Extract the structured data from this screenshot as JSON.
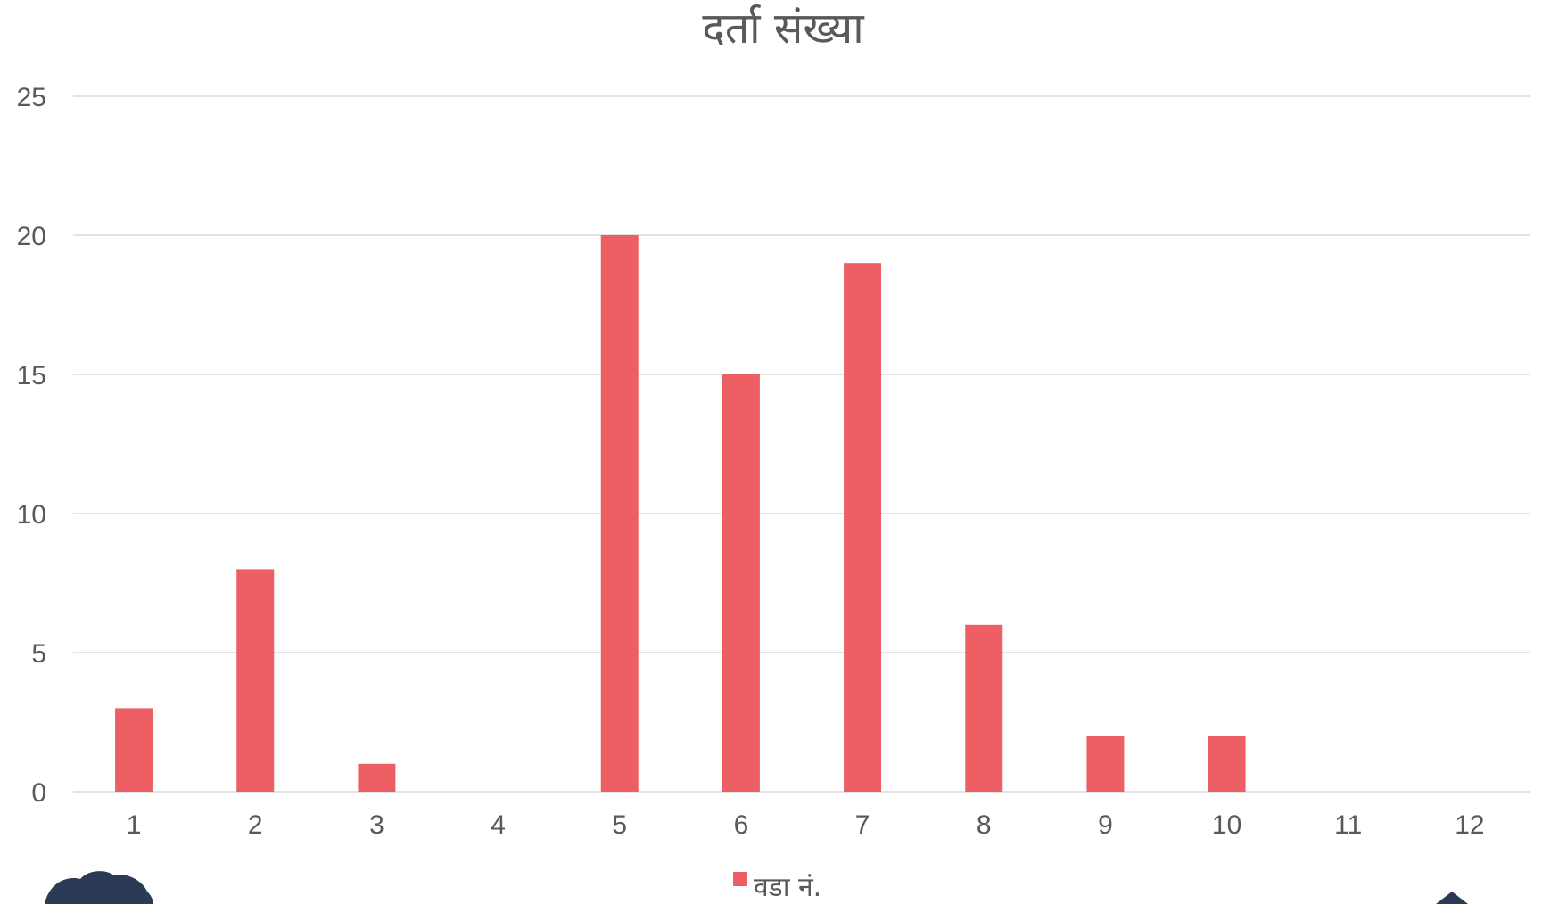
{
  "chart_data": {
    "type": "bar",
    "title": "दर्ता संख्या",
    "categories": [
      "1",
      "2",
      "3",
      "4",
      "5",
      "6",
      "7",
      "8",
      "9",
      "10",
      "11",
      "12"
    ],
    "series": [
      {
        "name": "वडा नं.",
        "values": [
          3,
          8,
          1,
          0,
          20,
          15,
          19,
          6,
          2,
          2,
          0,
          0
        ],
        "color": "#ed5e65"
      }
    ],
    "ylim": [
      0,
      25
    ],
    "yticks": [
      0,
      5,
      10,
      15,
      20,
      25
    ],
    "grid": true,
    "legend": "bottom-center"
  },
  "colors": {
    "bar": "#ed5e65",
    "grid": "#d9d9d9",
    "text": "#595959",
    "decor": "#2b3a55"
  }
}
